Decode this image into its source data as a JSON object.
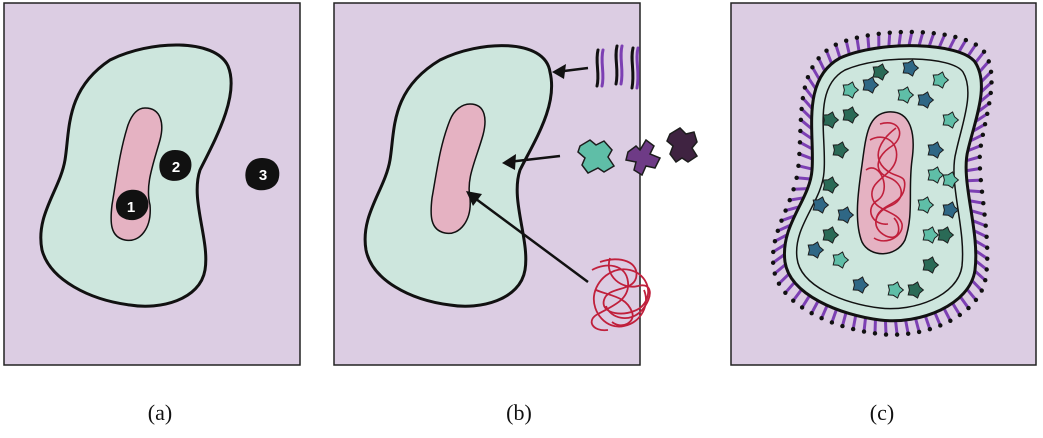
{
  "captions": {
    "a": "(a)",
    "b": "(b)",
    "c": "(c)"
  },
  "markers": {
    "one": "1",
    "two": "2",
    "three": "3"
  },
  "colors": {
    "panel": "#dccde3",
    "cytoplasm": "#cde6dd",
    "nucleoid": "#e5b2c2",
    "outline": "#111111",
    "lipid_purple": "#7c3fb3",
    "protein_teal": "#5fbea7",
    "protein_dark_teal": "#2a6a56",
    "protein_blue": "#2f6785",
    "protein_purple": "#6e3b86",
    "protein_dark_purple": "#3f2341",
    "dna_red": "#c0203c"
  },
  "icons": [
    "membrane-lipid-icon",
    "protein-icon",
    "dna-tangle-icon",
    "arrow-icon"
  ]
}
